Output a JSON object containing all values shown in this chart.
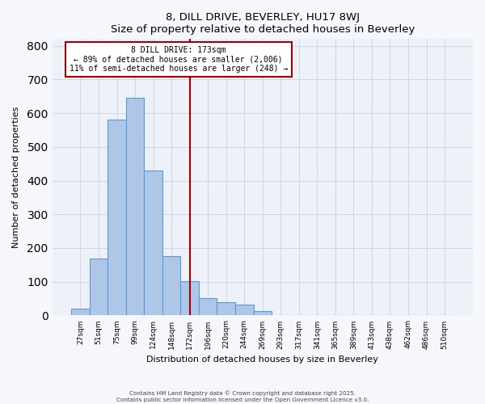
{
  "title": "8, DILL DRIVE, BEVERLEY, HU17 8WJ",
  "subtitle": "Size of property relative to detached houses in Beverley",
  "xlabel": "Distribution of detached houses by size in Beverley",
  "ylabel": "Number of detached properties",
  "bar_labels": [
    "27sqm",
    "51sqm",
    "75sqm",
    "99sqm",
    "124sqm",
    "148sqm",
    "172sqm",
    "196sqm",
    "220sqm",
    "244sqm",
    "269sqm",
    "293sqm",
    "317sqm",
    "341sqm",
    "365sqm",
    "389sqm",
    "413sqm",
    "438sqm",
    "462sqm",
    "486sqm",
    "510sqm"
  ],
  "bar_values": [
    20,
    168,
    582,
    645,
    430,
    175,
    102,
    51,
    40,
    33,
    12,
    0,
    0,
    0,
    0,
    0,
    0,
    0,
    0,
    0,
    2
  ],
  "bar_color": "#aec6e8",
  "bar_edge_color": "#5b9bd5",
  "vline_x_index": 6,
  "vline_color": "#a00000",
  "annotation_line1": "8 DILL DRIVE: 173sqm",
  "annotation_line2": "← 89% of detached houses are smaller (2,006)",
  "annotation_line3": "11% of semi-detached houses are larger (248) →",
  "annotation_box_color": "#ffffff",
  "annotation_box_edge_color": "#a00000",
  "ylim": [
    0,
    820
  ],
  "yticks": [
    0,
    100,
    200,
    300,
    400,
    500,
    600,
    700,
    800
  ],
  "grid_color": "#d0d8e8",
  "bg_color": "#eef2f8",
  "fig_bg_color": "#f5f7fc",
  "footer1": "Contains HM Land Registry data © Crown copyright and database right 2025.",
  "footer2": "Contains public sector information licensed under the Open Government Licence v3.0."
}
